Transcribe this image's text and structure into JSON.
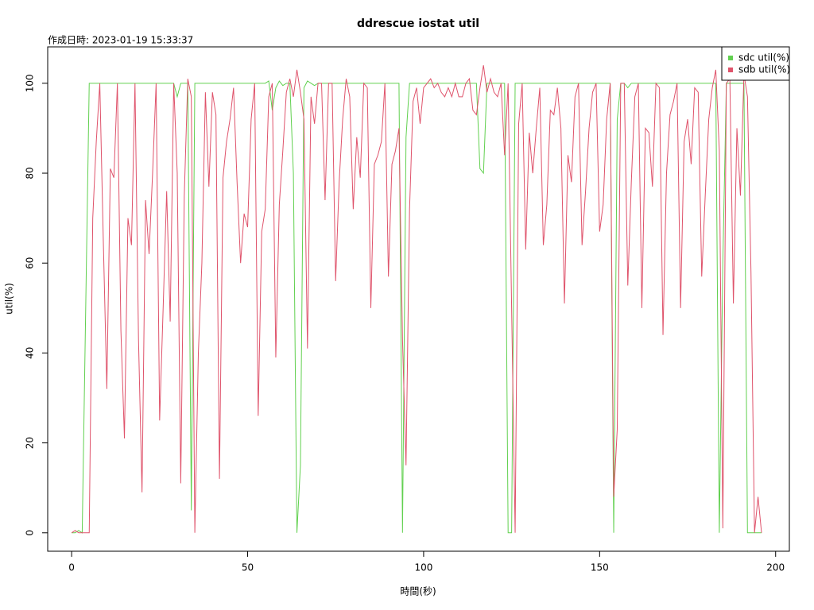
{
  "chart_data": {
    "type": "line",
    "title": "ddrescue iostat util",
    "subtitle": "作成日時: 2023-01-19 15:33:37",
    "x_label": "時間(秒)",
    "y_label": "util(%)",
    "x": [
      0,
      1,
      2,
      3,
      4,
      5,
      6,
      7,
      8,
      9,
      10,
      11,
      12,
      13,
      14,
      15,
      16,
      17,
      18,
      19,
      20,
      21,
      22,
      23,
      24,
      25,
      26,
      27,
      28,
      29,
      30,
      31,
      32,
      33,
      34,
      35,
      36,
      37,
      38,
      39,
      40,
      41,
      42,
      43,
      44,
      45,
      46,
      47,
      48,
      49,
      50,
      51,
      52,
      53,
      54,
      55,
      56,
      57,
      58,
      59,
      60,
      61,
      62,
      63,
      64,
      65,
      66,
      67,
      68,
      69,
      70,
      71,
      72,
      73,
      74,
      75,
      76,
      77,
      78,
      79,
      80,
      81,
      82,
      83,
      84,
      85,
      86,
      87,
      88,
      89,
      90,
      91,
      92,
      93,
      94,
      95,
      96,
      97,
      98,
      99,
      100,
      101,
      102,
      103,
      104,
      105,
      106,
      107,
      108,
      109,
      110,
      111,
      112,
      113,
      114,
      115,
      116,
      117,
      118,
      119,
      120,
      121,
      122,
      123,
      124,
      125,
      126,
      127,
      128,
      129,
      130,
      131,
      132,
      133,
      134,
      135,
      136,
      137,
      138,
      139,
      140,
      141,
      142,
      143,
      144,
      145,
      146,
      147,
      148,
      149,
      150,
      151,
      152,
      153,
      154,
      155,
      156,
      157,
      158,
      159,
      160,
      161,
      162,
      163,
      164,
      165,
      166,
      167,
      168,
      169,
      170,
      171,
      172,
      173,
      174,
      175,
      176,
      177,
      178,
      179,
      180,
      181,
      182,
      183,
      184,
      185,
      186,
      187,
      188,
      189,
      190,
      191,
      192,
      193,
      194,
      195,
      196
    ],
    "series": [
      {
        "name": "sdc util(%)",
        "color": "#61d04f",
        "values": [
          0,
          0,
          0.5,
          0,
          50,
          100,
          100,
          100,
          100,
          100,
          100,
          100,
          100,
          100,
          100,
          100,
          100,
          100,
          100,
          100,
          100,
          100,
          100,
          100,
          100,
          100,
          100,
          100,
          100,
          100,
          97,
          100,
          100,
          100,
          5,
          100,
          100,
          100,
          100,
          100,
          100,
          100,
          100,
          100,
          100,
          100,
          100,
          100,
          100,
          100,
          100,
          100,
          100,
          100,
          100,
          100,
          100.5,
          94,
          99,
          100.5,
          99.5,
          100,
          100,
          80,
          0,
          15,
          99,
          100.5,
          100,
          99.5,
          100,
          100,
          100,
          100,
          100,
          100,
          100,
          100,
          100,
          100,
          100,
          100,
          100,
          100,
          100,
          100,
          100,
          100,
          100,
          100,
          100,
          100,
          100,
          100,
          0,
          88,
          100,
          100,
          100,
          100,
          100,
          100,
          100,
          100,
          100,
          100,
          100,
          100,
          100,
          100,
          100,
          100,
          100,
          100,
          100,
          100,
          81,
          80,
          100,
          100,
          100,
          100,
          100,
          100,
          0,
          0,
          100,
          100,
          100,
          100,
          100,
          100,
          100,
          100,
          100,
          100,
          100,
          100,
          100,
          100,
          100,
          100,
          100,
          100,
          100,
          100,
          100,
          100,
          100,
          100,
          100,
          100,
          100,
          100,
          0,
          92,
          100,
          100,
          99,
          100,
          100,
          100,
          100,
          100,
          100,
          100,
          100,
          100,
          100,
          100,
          100,
          100,
          100,
          100,
          100,
          100,
          100,
          100,
          100,
          100,
          100,
          100,
          100,
          100,
          0,
          60,
          100,
          100,
          100,
          100,
          100,
          100,
          0,
          0,
          0,
          0,
          0
        ]
      },
      {
        "name": "sdb util(%)",
        "color": "#df536b",
        "values": [
          0,
          0.5,
          0,
          0,
          0,
          0,
          70,
          87,
          100,
          65,
          32,
          81,
          79,
          100,
          45,
          21,
          70,
          64,
          100,
          43,
          9,
          74,
          62,
          80,
          100,
          25,
          50,
          76,
          47,
          100,
          80,
          11,
          75,
          101,
          97,
          0,
          40,
          60,
          98,
          77,
          98,
          93,
          12,
          79,
          87,
          92,
          99,
          78,
          60,
          71,
          68,
          92,
          100,
          26,
          67,
          72,
          97,
          100,
          39,
          73,
          85,
          98,
          101,
          97,
          103,
          98,
          92,
          41,
          97,
          91,
          100,
          100,
          74,
          100,
          100,
          56,
          78,
          92,
          101,
          97,
          72,
          88,
          79,
          100,
          99,
          50,
          82,
          84,
          87,
          100,
          57,
          82,
          85,
          90,
          43,
          15,
          72,
          96,
          99,
          91,
          99,
          100,
          101,
          99,
          100,
          98,
          97,
          99,
          97,
          100,
          97,
          97,
          100,
          101,
          94,
          93,
          99,
          104,
          98,
          101,
          98,
          97,
          100,
          84,
          100,
          50,
          0,
          91,
          100,
          63,
          89,
          80,
          90,
          99,
          64,
          73,
          94,
          93,
          99,
          90,
          51,
          84,
          78,
          97,
          100,
          64,
          76,
          90,
          98,
          100,
          67,
          73,
          92,
          100,
          8,
          23,
          100,
          100,
          55,
          78,
          97,
          100,
          50,
          90,
          89,
          77,
          100,
          99,
          44,
          80,
          93,
          96,
          100,
          50,
          87,
          92,
          82,
          99,
          98,
          57,
          75,
          92,
          99,
          103,
          85,
          1,
          100,
          101,
          51,
          90,
          75,
          102,
          97,
          58,
          0,
          8,
          0
        ]
      }
    ],
    "xlim": [
      -6.8,
      203.9
    ],
    "ylim": [
      -4.1,
      108.1
    ],
    "xticks": [
      0,
      50,
      100,
      150,
      200
    ],
    "yticks": [
      0,
      20,
      40,
      60,
      80,
      100
    ],
    "legend": "top-right"
  }
}
